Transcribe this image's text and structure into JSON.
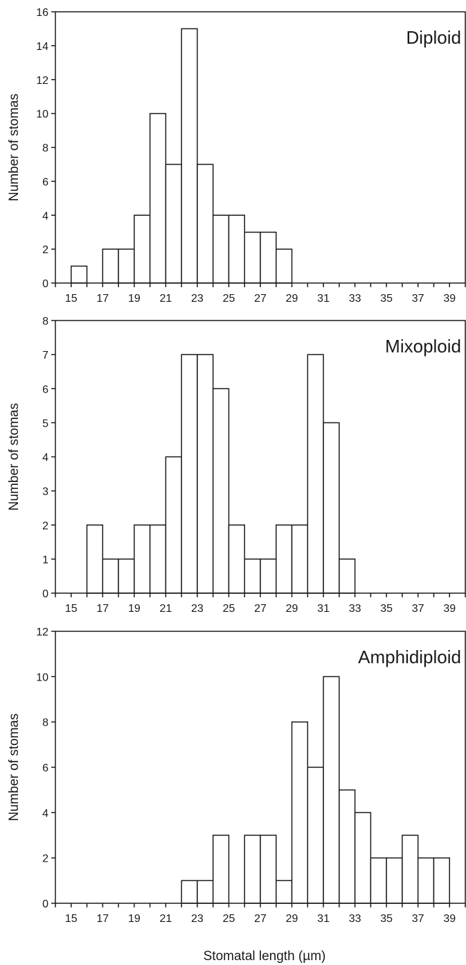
{
  "chart_data": [
    {
      "type": "bar",
      "panel_label": "Diploid",
      "ylabel": "Number of stomas",
      "ylim": [
        0,
        16
      ],
      "yticks": [
        0,
        2,
        4,
        6,
        8,
        10,
        12,
        14,
        16
      ],
      "xlim": [
        14,
        40
      ],
      "xticks": [
        15,
        17,
        19,
        21,
        23,
        25,
        27,
        29,
        31,
        33,
        35,
        37,
        39
      ],
      "bins": [
        [
          15,
          16,
          1
        ],
        [
          17,
          18,
          2
        ],
        [
          18,
          19,
          2
        ],
        [
          19,
          20,
          4
        ],
        [
          20,
          21,
          10
        ],
        [
          21,
          22,
          7
        ],
        [
          22,
          23,
          15
        ],
        [
          23,
          24,
          7
        ],
        [
          24,
          25,
          4
        ],
        [
          25,
          26,
          4
        ],
        [
          26,
          27,
          3
        ],
        [
          27,
          28,
          3
        ],
        [
          28,
          29,
          2
        ]
      ]
    },
    {
      "type": "bar",
      "panel_label": "Mixoploid",
      "ylabel": "Number of stomas",
      "ylim": [
        0,
        8
      ],
      "yticks": [
        0,
        1,
        2,
        3,
        4,
        5,
        6,
        7,
        8
      ],
      "xlim": [
        14,
        40
      ],
      "xticks": [
        15,
        17,
        19,
        21,
        23,
        25,
        27,
        29,
        31,
        33,
        35,
        37,
        39
      ],
      "bins": [
        [
          16,
          17,
          2
        ],
        [
          17,
          18,
          1
        ],
        [
          18,
          19,
          1
        ],
        [
          19,
          20,
          2
        ],
        [
          20,
          21,
          2
        ],
        [
          21,
          22,
          4
        ],
        [
          22,
          23,
          7
        ],
        [
          23,
          24,
          7
        ],
        [
          24,
          25,
          6
        ],
        [
          25,
          26,
          2
        ],
        [
          26,
          27,
          1
        ],
        [
          27,
          28,
          1
        ],
        [
          28,
          29,
          2
        ],
        [
          29,
          30,
          2
        ],
        [
          30,
          31,
          7
        ],
        [
          31,
          32,
          5
        ],
        [
          32,
          33,
          1
        ]
      ]
    },
    {
      "type": "bar",
      "panel_label": "Amphidiploid",
      "ylabel": "Number of stomas",
      "xlabel": "Stomatal length (µm)",
      "ylim": [
        0,
        12
      ],
      "yticks": [
        0,
        2,
        4,
        6,
        8,
        10,
        12
      ],
      "xlim": [
        14,
        40
      ],
      "xticks": [
        15,
        17,
        19,
        21,
        23,
        25,
        27,
        29,
        31,
        33,
        35,
        37,
        39
      ],
      "bins": [
        [
          22,
          23,
          1
        ],
        [
          23,
          24,
          1
        ],
        [
          24,
          25,
          3
        ],
        [
          26,
          27,
          3
        ],
        [
          27,
          28,
          3
        ],
        [
          28,
          29,
          1
        ],
        [
          29,
          30,
          8
        ],
        [
          30,
          31,
          6
        ],
        [
          31,
          32,
          10
        ],
        [
          32,
          33,
          5
        ],
        [
          33,
          34,
          4
        ],
        [
          34,
          35,
          2
        ],
        [
          35,
          36,
          2
        ],
        [
          36,
          37,
          3
        ],
        [
          37,
          38,
          2
        ],
        [
          38,
          39,
          2
        ]
      ]
    }
  ]
}
